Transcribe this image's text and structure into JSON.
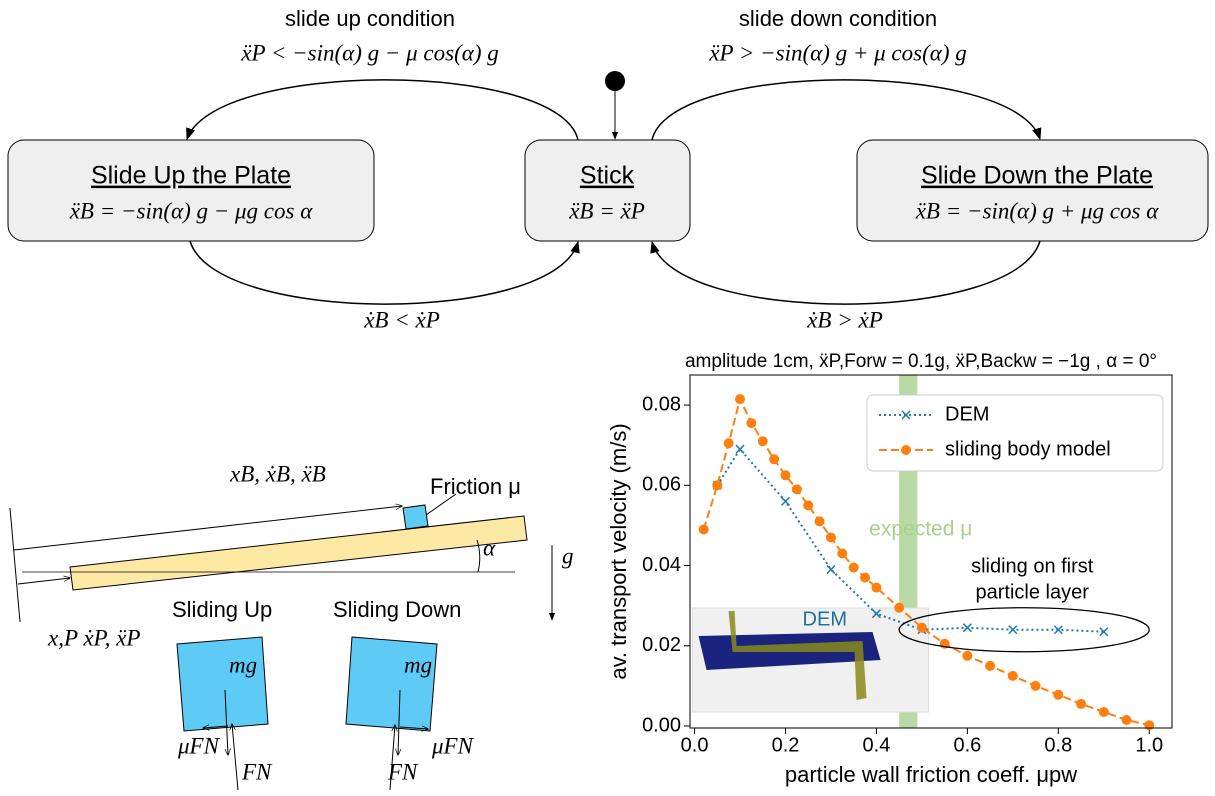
{
  "diagram": {
    "nodes": [
      {
        "title": "Slide Up the Plate",
        "formula": "ẍB = −sin(α) g − μg cos α"
      },
      {
        "title": "Stick",
        "formula": "ẍB = ẍP"
      },
      {
        "title": "Slide Down the Plate",
        "formula": "ẍB = −sin(α) g + μg cos α"
      }
    ],
    "edges": [
      {
        "label": "slide up condition",
        "condition": "ẍP < −sin(α) g − μ cos(α) g"
      },
      {
        "label": "slide down condition",
        "condition": "ẍP > −sin(α) g + μ cos(α) g"
      },
      {
        "condition": "ẋB < ẋP"
      },
      {
        "condition": "ẋB > ẋP"
      }
    ]
  },
  "sketch": {
    "friction": "Friction μ",
    "block_position": "xB, ẋB, ẍB",
    "plate_position": "x,P  ẋP, ẍP",
    "angle": "α",
    "gravity": "g",
    "sliding_up": "Sliding Up",
    "sliding_down": "Sliding Down",
    "weight": "mg",
    "friction_force": "μFN",
    "normal_force": "FN"
  },
  "chart_data": {
    "type": "line",
    "title": "amplitude 1cm, ẍP,Forw = 0.1g, ẍP,Backw = −1g , α = 0°",
    "x_label": "particle wall friction coeff. μpw",
    "y_label": "av. transport velocity (m/s)",
    "xlim": [
      -0.01,
      1.05
    ],
    "ylim": [
      -0.0005,
      0.0875
    ],
    "xticks": [
      {
        "value": 0,
        "label": "0.0"
      },
      0.2,
      0.4,
      0.6,
      0.8,
      {
        "value": 1,
        "label": "1.0"
      }
    ],
    "yticks": [
      {
        "value": 0,
        "label": "0.00"
      },
      0.02,
      0.04,
      0.06,
      0.08
    ],
    "legend": "upper right",
    "series": [
      {
        "name": "DEM",
        "color": "#1f77b4",
        "marker": "x",
        "dash": "dotted",
        "x": [
          0.05,
          0.1,
          0.2,
          0.3,
          0.4,
          0.5,
          0.6,
          0.7,
          0.8,
          0.9
        ],
        "values": [
          0.06,
          0.069,
          0.056,
          0.039,
          0.028,
          0.024,
          0.0245,
          0.024,
          0.024,
          0.0235
        ]
      },
      {
        "name": "sliding body model",
        "color": "#ff7f0e",
        "marker": "o",
        "dash": "dashed",
        "x": [
          0.02,
          0.05,
          0.075,
          0.1,
          0.125,
          0.15,
          0.175,
          0.2,
          0.225,
          0.25,
          0.275,
          0.3,
          0.325,
          0.35,
          0.375,
          0.4,
          0.45,
          0.5,
          0.55,
          0.6,
          0.65,
          0.7,
          0.75,
          0.8,
          0.85,
          0.9,
          0.95,
          1.0
        ],
        "values": [
          0.049,
          0.06,
          0.0705,
          0.0815,
          0.0755,
          0.071,
          0.0665,
          0.0625,
          0.059,
          0.055,
          0.051,
          0.047,
          0.043,
          0.0395,
          0.037,
          0.0345,
          0.0295,
          0.0245,
          0.0205,
          0.0175,
          0.015,
          0.0125,
          0.01,
          0.0078,
          0.0055,
          0.0035,
          0.0015,
          0.0002
        ]
      }
    ],
    "highlight": {
      "label": "expected μ",
      "x": [
        0.45,
        0.49
      ],
      "color": "#a9d18e"
    },
    "ellipse": {
      "lines": [
        "sliding on first",
        "particle layer"
      ],
      "x": [
        0.45,
        1.0
      ],
      "y": 0.024
    },
    "inset_label": "DEM"
  }
}
